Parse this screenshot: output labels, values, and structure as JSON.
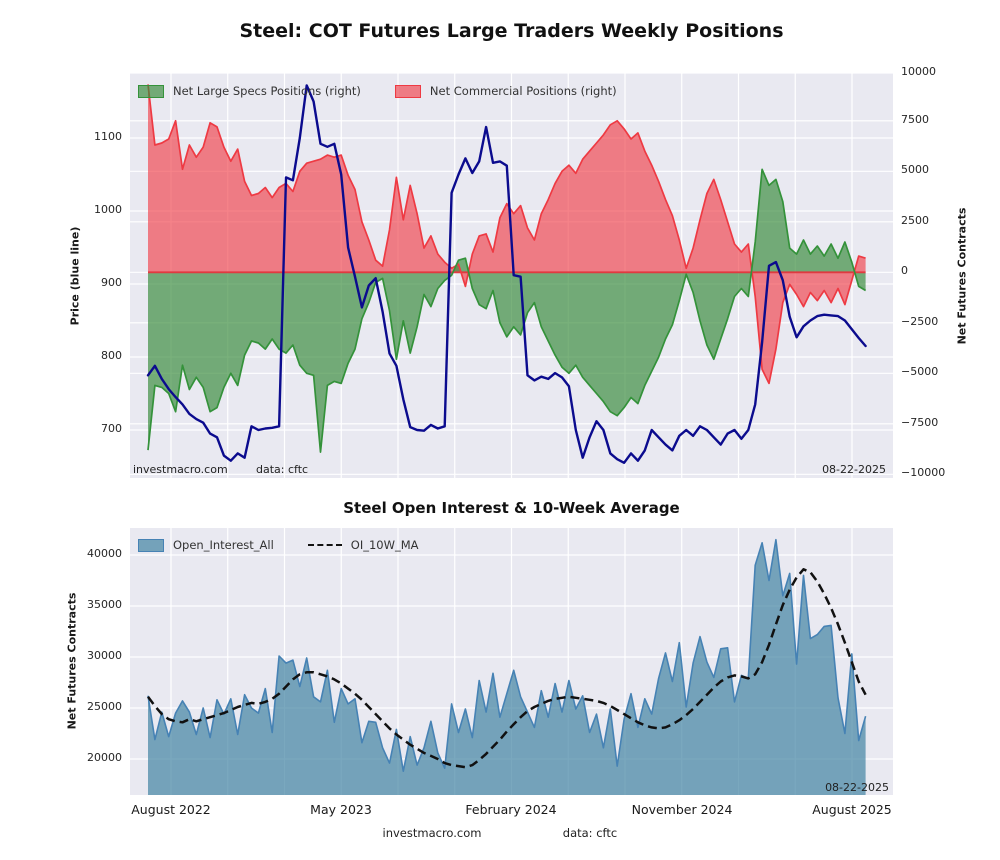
{
  "figure": {
    "title": "Steel: COT Futures Large Traders Weekly Positions",
    "subtitle": "Steel Open Interest & 10-Week Average",
    "watermark": "investmacro.com",
    "source_label": "data: cftc",
    "report_date": "08-22-2025"
  },
  "colors": {
    "plot_bg": "#e9e9f1",
    "grid": "#ffffff",
    "price_line": "#0b0b8e",
    "commercial_fill": "rgba(240,55,65,0.62)",
    "commercial_edge": "#ee3a43",
    "specs_fill": "rgba(58,140,60,0.68)",
    "specs_edge": "#34923a",
    "zero_line": "#e03a40",
    "oi_fill": "rgba(70,135,165,0.72)",
    "oi_edge": "#4682b4",
    "ma_line": "#111111"
  },
  "top_chart": {
    "ylabel_left": "Price (blue line)",
    "ylabel_right": "Net Futures Contracts",
    "legend": [
      {
        "label": "Net Large Specs Positions (right)",
        "swatch": "green"
      },
      {
        "label": "Net Commercial Positions (right)",
        "swatch": "red"
      }
    ],
    "footer_left": "investmacro.com",
    "footer_source": "data: cftc",
    "footer_date": "08-22-2025"
  },
  "bottom_chart": {
    "ylabel_left": "Net Futures Contracts",
    "legend": [
      {
        "label": "Open_Interest_All",
        "swatch": "blue"
      },
      {
        "label": "OI_10W_MA",
        "swatch": "dash"
      }
    ],
    "footer_date": "08-22-2025"
  },
  "chart_data": [
    {
      "type": "area",
      "title": "Steel: COT Futures Large Traders Weekly Positions",
      "x_unit": "weeks since late May 2022 (weekly COT data, step = 1.5 weeks)",
      "x_step_weeks": 1.5,
      "xticks": [
        "August 2022",
        "May 2023",
        "February 2024",
        "November 2024",
        "August 2025"
      ],
      "yticks_left": [
        "1100",
        "1000",
        "900",
        "800",
        "700"
      ],
      "yticks_left_values": [
        1100,
        1000,
        900,
        800,
        700
      ],
      "yticks_right": [
        "10000",
        "7500",
        "5000",
        "2500",
        "0",
        "−2500",
        "−5000",
        "−7500",
        "−10000"
      ],
      "yticks_right_values": [
        10000,
        7500,
        5000,
        2500,
        0,
        -2500,
        -5000,
        -7500,
        -10000
      ],
      "ylim_right": [
        -10000,
        10000
      ],
      "ylim_left_approx": [
        611,
        1189
      ],
      "legend_position": "upper left inside",
      "grid": true,
      "series": [
        {
          "name": "Price (blue line)",
          "axis": "left",
          "values": [
            775,
            788,
            770,
            756,
            745,
            735,
            722,
            715,
            710,
            695,
            690,
            665,
            658,
            668,
            662,
            705,
            700,
            702,
            703,
            705,
            1046,
            1042,
            1100,
            1172,
            1150,
            1092,
            1088,
            1092,
            1050,
            950,
            910,
            868,
            898,
            908,
            862,
            805,
            788,
            742,
            704,
            700,
            699,
            707,
            702,
            705,
            1025,
            1050,
            1072,
            1052,
            1068,
            1115,
            1066,
            1068,
            1062,
            912,
            910,
            775,
            768,
            773,
            770,
            778,
            772,
            760,
            700,
            662,
            690,
            712,
            700,
            668,
            660,
            655,
            668,
            658,
            672,
            700,
            690,
            680,
            672,
            692,
            700,
            692,
            705,
            700,
            690,
            680,
            695,
            700,
            688,
            700,
            735,
            820,
            925,
            930,
            905,
            855,
            827,
            842,
            850,
            856,
            858,
            857,
            856,
            850,
            838,
            826,
            815
          ]
        },
        {
          "name": "Net Commercial Positions (right)",
          "axis": "right",
          "values": [
            9300,
            6300,
            6400,
            6600,
            7500,
            5100,
            6300,
            5700,
            6200,
            7400,
            7200,
            6200,
            5500,
            6100,
            4500,
            3800,
            3900,
            4200,
            3700,
            4200,
            4400,
            4000,
            5000,
            5400,
            5500,
            5600,
            5800,
            5700,
            5800,
            4800,
            4100,
            2500,
            1600,
            600,
            300,
            2100,
            4700,
            2600,
            4300,
            2900,
            1200,
            1800,
            900,
            500,
            200,
            400,
            -700,
            900,
            1800,
            1900,
            1000,
            2700,
            3400,
            2900,
            3300,
            2200,
            1600,
            2900,
            3600,
            4400,
            5000,
            5300,
            4900,
            5600,
            6000,
            6400,
            6800,
            7300,
            7500,
            7100,
            6600,
            6900,
            6000,
            5300,
            4500,
            3600,
            2800,
            1600,
            200,
            1200,
            2600,
            3900,
            4600,
            3600,
            2500,
            1400,
            1000,
            1400,
            -1200,
            -4800,
            -5500,
            -3800,
            -1500,
            -600,
            -1100,
            -1700,
            -1000,
            -1400,
            -900,
            -1500,
            -800,
            -1600,
            -400,
            800,
            700
          ]
        },
        {
          "name": "Net Large Specs Positions (right)",
          "axis": "right",
          "values": [
            -8800,
            -5600,
            -5700,
            -6000,
            -6900,
            -4600,
            -5800,
            -5200,
            -5700,
            -6900,
            -6700,
            -5700,
            -5000,
            -5600,
            -4100,
            -3400,
            -3500,
            -3800,
            -3300,
            -3800,
            -4000,
            -3600,
            -4600,
            -5000,
            -5100,
            -8900,
            -5600,
            -5400,
            -5500,
            -4500,
            -3800,
            -2300,
            -1500,
            -500,
            -300,
            -1900,
            -4300,
            -2400,
            -4000,
            -2700,
            -1100,
            -1700,
            -800,
            -400,
            -150,
            600,
            700,
            -800,
            -1600,
            -1800,
            -900,
            -2500,
            -3200,
            -2700,
            -3100,
            -2000,
            -1500,
            -2700,
            -3400,
            -4100,
            -4700,
            -5000,
            -4600,
            -5200,
            -5600,
            -6000,
            -6400,
            -6900,
            -7100,
            -6700,
            -6200,
            -6500,
            -5600,
            -4900,
            -4200,
            -3300,
            -2600,
            -1400,
            -100,
            -1000,
            -2400,
            -3600,
            -4300,
            -3300,
            -2300,
            -1200,
            -800,
            -1200,
            1500,
            5100,
            4300,
            4600,
            3500,
            1200,
            900,
            1600,
            900,
            1300,
            800,
            1400,
            700,
            1500,
            500,
            -700,
            -900
          ]
        }
      ]
    },
    {
      "type": "area",
      "title": "Steel Open Interest & 10-Week Average",
      "x_unit": "weeks since late May 2022 (weekly COT data, step = 1.5 weeks)",
      "x_step_weeks": 1.5,
      "xticks": [
        "August 2022",
        "May 2023",
        "February 2024",
        "November 2024",
        "August 2025"
      ],
      "yticks": [
        "40000",
        "35000",
        "30000",
        "25000",
        "20000"
      ],
      "yticks_values": [
        40000,
        35000,
        30000,
        25000,
        20000
      ],
      "ylim_approx": [
        17300,
        43500
      ],
      "legend_position": "upper left inside",
      "grid": true,
      "series": [
        {
          "name": "Open_Interest_All",
          "values": [
            26200,
            21900,
            24600,
            22200,
            24500,
            25700,
            24600,
            22400,
            25000,
            22100,
            25800,
            24400,
            25900,
            22400,
            26300,
            25000,
            24500,
            26900,
            22600,
            30100,
            29400,
            29700,
            27100,
            29900,
            26100,
            25600,
            28700,
            23600,
            26900,
            25400,
            25900,
            21600,
            23700,
            23600,
            21100,
            19600,
            22900,
            18800,
            22200,
            19400,
            21100,
            23700,
            20600,
            19100,
            25400,
            22600,
            24900,
            22100,
            27700,
            24600,
            28400,
            24100,
            26400,
            28700,
            26100,
            24600,
            23100,
            26700,
            24100,
            27400,
            24600,
            27700,
            24900,
            26200,
            22600,
            24400,
            21100,
            24900,
            19300,
            23900,
            26400,
            23100,
            25900,
            24400,
            27900,
            30400,
            27600,
            31400,
            25100,
            29400,
            32000,
            29500,
            28000,
            30800,
            30900,
            25600,
            28200,
            27900,
            39000,
            41200,
            37500,
            41500,
            36000,
            38200,
            29300,
            38000,
            31800,
            32200,
            33000,
            33100,
            26000,
            22500,
            30300,
            21800,
            24200
          ]
        },
        {
          "name": "OI_10W_MA",
          "values": [
            26100,
            25200,
            24400,
            23900,
            23700,
            23600,
            23900,
            23700,
            23900,
            24100,
            24300,
            24500,
            24800,
            25100,
            25300,
            25500,
            25400,
            25600,
            25900,
            26400,
            27100,
            27800,
            28300,
            28500,
            28500,
            28300,
            28100,
            27800,
            27400,
            26900,
            26400,
            25800,
            25100,
            24400,
            23700,
            23000,
            22400,
            21900,
            21400,
            21000,
            20600,
            20300,
            20000,
            19600,
            19400,
            19300,
            19200,
            19400,
            19900,
            20500,
            21200,
            21900,
            22700,
            23400,
            24100,
            24700,
            25100,
            25400,
            25700,
            25900,
            26000,
            26100,
            26000,
            25900,
            25800,
            25700,
            25500,
            25200,
            24800,
            24400,
            24000,
            23600,
            23300,
            23100,
            23000,
            23100,
            23400,
            23800,
            24300,
            24900,
            25600,
            26300,
            27000,
            27600,
            28000,
            28200,
            28100,
            27900,
            28300,
            29500,
            31200,
            33200,
            35100,
            36600,
            37800,
            38600,
            38300,
            37400,
            36200,
            34800,
            33200,
            31400,
            29500,
            27600,
            26300
          ]
        }
      ]
    }
  ]
}
